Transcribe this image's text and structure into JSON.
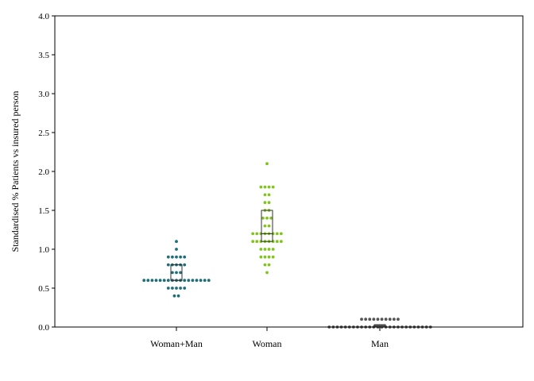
{
  "chart_data": {
    "type": "scatter",
    "subtype": "dot-plot-with-box",
    "title": "",
    "xlabel": "",
    "ylabel": "Standardised % Patients vs insured person",
    "ylim": [
      0,
      4
    ],
    "yticks": [
      "0.0",
      "0.5",
      "1.0",
      "1.5",
      "2.0",
      "2.5",
      "3.0",
      "3.5",
      "4.0"
    ],
    "grid": false,
    "legend": "none",
    "categories": [
      "Woman+Man",
      "Woman",
      "Man"
    ],
    "series": [
      {
        "category": "Woman+Man",
        "color": "#1f6f78",
        "box": {
          "q1": 0.6,
          "median": 0.6,
          "q3": 0.8
        },
        "rows": [
          {
            "y": 1.1,
            "count": 1
          },
          {
            "y": 1.0,
            "count": 1
          },
          {
            "y": 0.9,
            "count": 5
          },
          {
            "y": 0.8,
            "count": 5
          },
          {
            "y": 0.7,
            "count": 3
          },
          {
            "y": 0.6,
            "count": 17
          },
          {
            "y": 0.5,
            "count": 5
          },
          {
            "y": 0.4,
            "count": 2
          }
        ]
      },
      {
        "category": "Woman",
        "color": "#80c41c",
        "box": {
          "q1": 1.1,
          "median": 1.2,
          "q3": 1.5
        },
        "rows": [
          {
            "y": 2.1,
            "count": 1
          },
          {
            "y": 1.8,
            "count": 4
          },
          {
            "y": 1.7,
            "count": 2
          },
          {
            "y": 1.6,
            "count": 2
          },
          {
            "y": 1.5,
            "count": 2
          },
          {
            "y": 1.4,
            "count": 3
          },
          {
            "y": 1.3,
            "count": 2
          },
          {
            "y": 1.2,
            "count": 8
          },
          {
            "y": 1.1,
            "count": 8
          },
          {
            "y": 1.0,
            "count": 4
          },
          {
            "y": 0.9,
            "count": 4
          },
          {
            "y": 0.8,
            "count": 2
          },
          {
            "y": 0.7,
            "count": 1
          }
        ]
      },
      {
        "category": "Man",
        "color": "#555555",
        "box": {
          "q1": 0.0,
          "median": 0.0,
          "q3": 0.03
        },
        "rows": [
          {
            "y": 0.1,
            "count": 10
          },
          {
            "y": 0.0,
            "count": 26
          }
        ]
      }
    ]
  }
}
